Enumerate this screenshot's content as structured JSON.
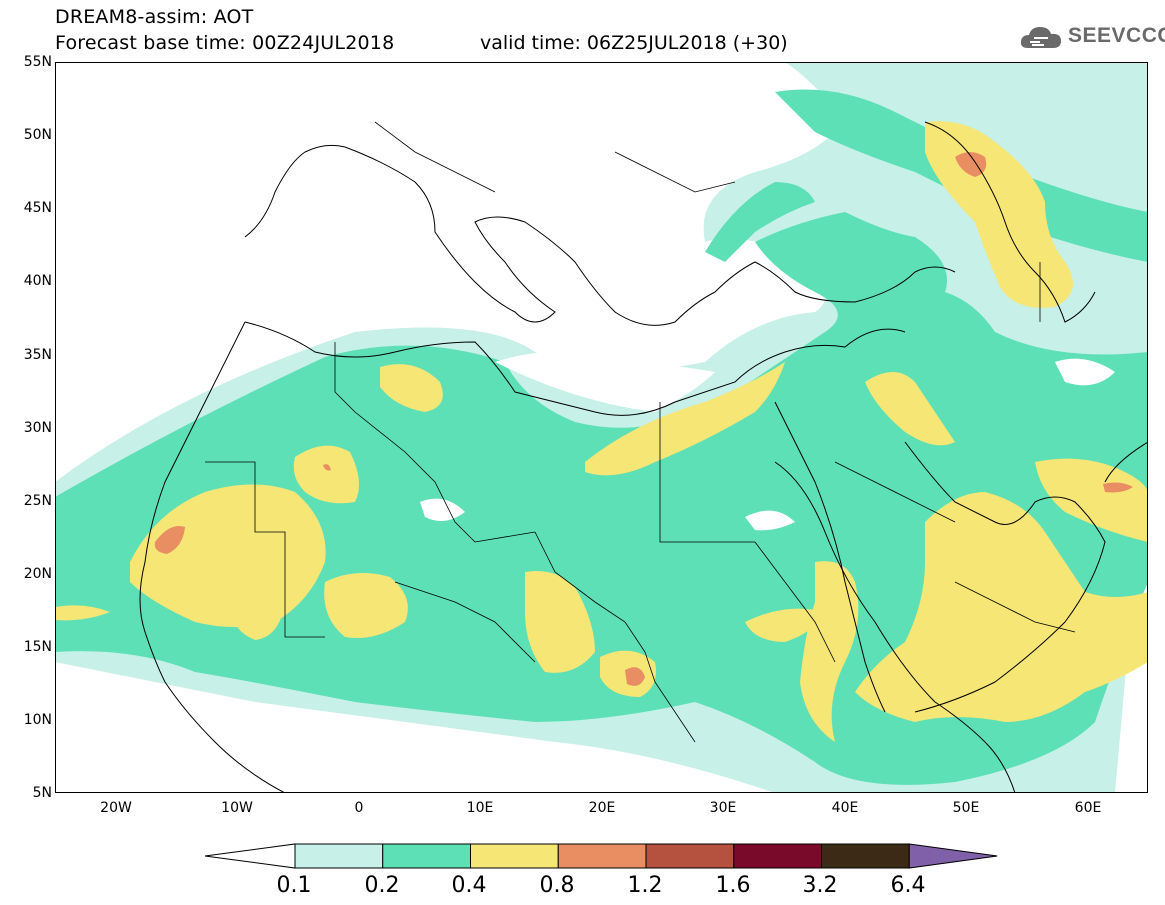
{
  "header": {
    "line1": "DREAM8-assim: AOT",
    "line2_base": "Forecast base time: 00Z24JUL2018",
    "line2_valid": "valid time: 06Z25JUL2018 (+30)"
  },
  "logo": {
    "text": "SEEVCCC",
    "icon": "cloud-icon"
  },
  "map": {
    "lon_range": [
      -25,
      65
    ],
    "lat_range": [
      5,
      55
    ],
    "lat_labels": [
      "55N",
      "50N",
      "45N",
      "40N",
      "35N",
      "30N",
      "25N",
      "20N",
      "15N",
      "10N",
      "5N"
    ],
    "lon_labels": [
      "20W",
      "10W",
      "0",
      "10E",
      "20E",
      "30E",
      "40E",
      "50E",
      "60E"
    ]
  },
  "colorbar": {
    "levels": [
      "0.1",
      "0.2",
      "0.4",
      "0.8",
      "1.2",
      "1.6",
      "3.2",
      "6.4"
    ],
    "colors": [
      "#ffffff",
      "#c6f0e8",
      "#5de0b5",
      "#f5e676",
      "#e98e63",
      "#b5513f",
      "#7a0a2a",
      "#3d2a16",
      "#8060a8"
    ]
  }
}
